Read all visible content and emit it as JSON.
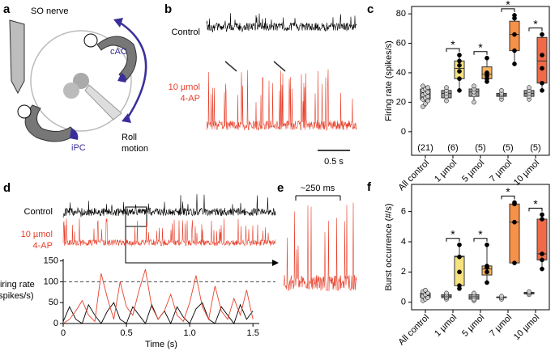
{
  "diagram": {
    "label": "a",
    "nerve": "SO nerve",
    "anterior": "cAC",
    "posterior": "iPC",
    "motion": [
      "Roll",
      "motion"
    ]
  },
  "recordings": {
    "label": "b",
    "control": "Control",
    "drug": [
      "10 µmol",
      "4-AP"
    ],
    "scale_bar": "0.5 s"
  },
  "zoom": {
    "label": "e",
    "duration": "~250 ms"
  },
  "chart_data": [
    {
      "type": "box",
      "panel": "c",
      "ylabel": "Firing rate (spikes/s)",
      "ylim": [
        -16,
        85
      ],
      "yticks": [
        0,
        20,
        40,
        60,
        80
      ],
      "categories": [
        "All control",
        "1 µmol",
        "5 µmol",
        "7 µmol",
        "10 µmol"
      ],
      "n_labels": [
        "(21)",
        "(6)",
        "(5)",
        "(5)",
        "(5)"
      ],
      "significance": [
        null,
        "*",
        "*",
        "*",
        "*"
      ],
      "groups": [
        [
          {
            "color": "#9a9a9a",
            "min": 17,
            "q1": 22,
            "median": 25,
            "q3": 29,
            "max": 31,
            "points": [
              17,
              19,
              21,
              22,
              23,
              24,
              25,
              26,
              27,
              28,
              29,
              30,
              31
            ]
          }
        ],
        [
          {
            "color": "#9a9a9a",
            "min": 21,
            "q1": 23,
            "median": 26,
            "q3": 28,
            "max": 31,
            "points": [
              21,
              24,
              26,
              28,
              30
            ]
          },
          {
            "color": "#f6e27f",
            "min": 28,
            "q1": 36,
            "median": 43,
            "q3": 48,
            "max": 52,
            "points": [
              28,
              36,
              41,
              45,
              48,
              52
            ]
          }
        ],
        [
          {
            "color": "#9a9a9a",
            "min": 20,
            "q1": 24,
            "median": 27,
            "q3": 29,
            "max": 31,
            "points": [
              20,
              25,
              27,
              29,
              31
            ]
          },
          {
            "color": "#f8b35f",
            "min": 34,
            "q1": 36,
            "median": 39,
            "q3": 44,
            "max": 50,
            "points": [
              34,
              36,
              38,
              40,
              50
            ]
          }
        ],
        [
          {
            "color": "#9a9a9a",
            "min": 22,
            "q1": 24,
            "median": 25,
            "q3": 26,
            "max": 28,
            "points": [
              22,
              24,
              25,
              26,
              28
            ]
          },
          {
            "color": "#f6914a",
            "min": 46,
            "q1": 55,
            "median": 66,
            "q3": 75,
            "max": 79,
            "points": [
              46,
              55,
              66,
              77,
              79
            ]
          }
        ],
        [
          {
            "color": "#9a9a9a",
            "min": 22,
            "q1": 24,
            "median": 26,
            "q3": 28,
            "max": 30,
            "points": [
              22,
              24,
              26,
              28,
              30
            ]
          },
          {
            "color": "#f06a48",
            "min": 28,
            "q1": 33,
            "median": 48,
            "q3": 64,
            "max": 66,
            "points": [
              28,
              33,
              43,
              52,
              66
            ]
          }
        ]
      ]
    },
    {
      "type": "line",
      "panel": "d",
      "ylabel": [
        "Firing rate",
        "(spikes/s)"
      ],
      "xlabel": "Time (s)",
      "trace_labels": {
        "control": "Control",
        "drug": [
          "10 µmol",
          "4-AP"
        ]
      },
      "xlim": [
        0,
        1.55
      ],
      "ylim": [
        0,
        155
      ],
      "xticks": [
        0,
        0.5,
        {
          "value": 1,
          "label": "1.0"
        },
        1.5
      ],
      "yticks": [
        0,
        50,
        100,
        150
      ],
      "threshold": 100,
      "x": [
        0,
        0.05,
        0.1,
        0.15,
        0.2,
        0.25,
        0.3,
        0.35,
        0.4,
        0.45,
        0.5,
        0.55,
        0.6,
        0.65,
        0.7,
        0.75,
        0.8,
        0.85,
        0.9,
        0.95,
        1,
        1.05,
        1.1,
        1.15,
        1.2,
        1.25,
        1.3,
        1.35,
        1.4,
        1.45,
        1.5
      ],
      "series": [
        {
          "color": "#000000",
          "values": [
            5,
            40,
            10,
            0,
            45,
            20,
            0,
            30,
            50,
            10,
            0,
            40,
            20,
            0,
            45,
            10,
            30,
            0,
            40,
            15,
            0,
            35,
            50,
            10,
            0,
            40,
            20,
            0,
            45,
            10,
            30
          ]
        },
        {
          "color": "#e8412c",
          "values": [
            0,
            10,
            30,
            55,
            20,
            5,
            120,
            60,
            10,
            100,
            40,
            20,
            80,
            130,
            40,
            10,
            30,
            70,
            20,
            5,
            50,
            115,
            40,
            10,
            90,
            30,
            10,
            60,
            20,
            80,
            10
          ]
        }
      ]
    },
    {
      "type": "box",
      "panel": "f",
      "ylabel": "Burst occurrence (#/s)",
      "ylim": [
        -0.5,
        7.8
      ],
      "yticks": [
        0,
        2,
        4,
        6
      ],
      "categories": [
        "All control",
        "1 µmol",
        "5 µmol",
        "7 µmol",
        "10 µmol"
      ],
      "significance": [
        null,
        "*",
        "*",
        "*",
        "*"
      ],
      "groups": [
        [
          {
            "color": "#9a9a9a",
            "min": 0.1,
            "q1": 0.3,
            "median": 0.45,
            "q3": 0.6,
            "max": 0.8,
            "points": [
              0.1,
              0.2,
              0.3,
              0.4,
              0.5,
              0.6,
              0.7,
              0.8
            ]
          }
        ],
        [
          {
            "color": "#9a9a9a",
            "min": 0.2,
            "q1": 0.3,
            "median": 0.4,
            "q3": 0.5,
            "max": 0.6,
            "points": [
              0.2,
              0.3,
              0.4,
              0.5,
              0.6
            ]
          },
          {
            "color": "#f6e27f",
            "min": 0.8,
            "q1": 1.1,
            "median": 3.0,
            "q3": 3.05,
            "max": 3.8,
            "points": [
              0.9,
              1.1,
              2.0,
              3.0,
              3.8
            ]
          }
        ],
        [
          {
            "color": "#9a9a9a",
            "min": 0.1,
            "q1": 0.2,
            "median": 0.35,
            "q3": 0.5,
            "max": 0.6,
            "points": [
              0.1,
              0.2,
              0.4,
              0.5,
              0.6
            ]
          },
          {
            "color": "#f8b35f",
            "min": 1.3,
            "q1": 1.8,
            "median": 2.2,
            "q3": 2.4,
            "max": 3.8,
            "points": [
              1.3,
              2.0,
              2.3,
              2.4,
              3.8
            ]
          }
        ],
        [
          {
            "color": "#9a9a9a",
            "min": 0.2,
            "q1": 0.3,
            "median": 0.3,
            "q3": 0.35,
            "max": 0.4,
            "points": [
              0.2,
              0.3,
              0.4
            ]
          },
          {
            "color": "#f6914a",
            "min": 2.6,
            "q1": 2.6,
            "median": 5.3,
            "q3": 6.5,
            "max": 6.6,
            "points": [
              2.6,
              5.3,
              6.5,
              6.6
            ]
          }
        ],
        [
          {
            "color": "#9a9a9a",
            "min": 0.5,
            "q1": 0.55,
            "median": 0.6,
            "q3": 0.65,
            "max": 0.7,
            "points": [
              0.5,
              0.6,
              0.7
            ]
          },
          {
            "color": "#f06a48",
            "min": 2.2,
            "q1": 2.8,
            "median": 3.2,
            "q3": 5.5,
            "max": 5.8,
            "points": [
              2.2,
              2.8,
              3.2,
              5.5,
              5.8
            ]
          }
        ]
      ]
    }
  ]
}
